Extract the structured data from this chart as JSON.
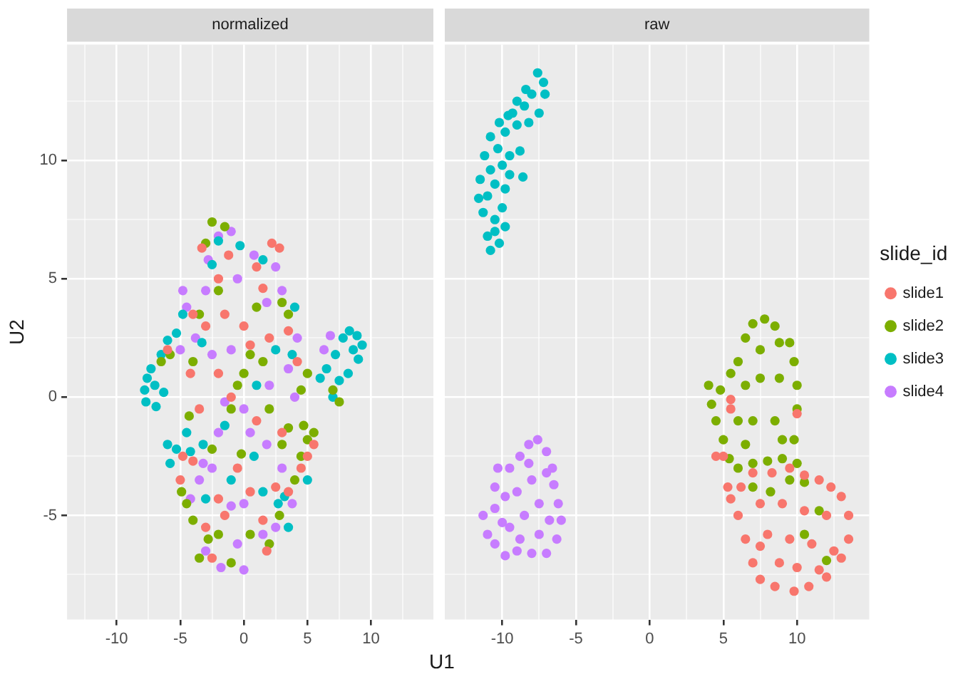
{
  "chart_data": [
    {
      "type": "scatter",
      "title": "normalized",
      "xlabel": "U1",
      "ylabel": "U2",
      "xlim": [
        -13.9,
        14.9
      ],
      "ylim": [
        -9.4,
        14.9
      ],
      "xticks": [
        {
          "value": -12.5,
          "label": null
        },
        -10,
        {
          "value": -7.5,
          "label": null
        },
        -5,
        {
          "value": -2.5,
          "label": null
        },
        0,
        {
          "value": 2.5,
          "label": null
        },
        5,
        {
          "value": 7.5,
          "label": null
        },
        10,
        {
          "value": 12.5,
          "label": null
        }
      ],
      "yticks": [
        {
          "value": -7.5,
          "label": null
        },
        -5,
        {
          "value": -2.5,
          "label": null
        },
        0,
        {
          "value": 2.5,
          "label": null
        },
        5,
        {
          "value": 7.5,
          "label": null
        },
        10,
        {
          "value": 12.5,
          "label": null
        }
      ],
      "grid": true,
      "marker": "circle",
      "series": [
        {
          "color": "#f8766d",
          "x": [
            -5.0,
            -4.0,
            -4.8,
            -3.0,
            -2.5,
            -1.5,
            0.5,
            1.5,
            2.5,
            3.5,
            4.5,
            5.0,
            3.0,
            1.0,
            -1.0,
            -2.0,
            -3.5,
            -4.2,
            -6.0,
            -3.0,
            -1.5,
            0.5,
            2.0,
            3.5,
            4.2,
            -2.0,
            -1.2,
            1.0,
            2.2,
            2.8,
            -3.3,
            0.0,
            -0.5,
            1.8,
            -2.0,
            5.5,
            -4.0,
            1.5
          ],
          "values": [
            -3.5,
            -2.7,
            -2.5,
            -5.5,
            -6.8,
            -5.0,
            -4.0,
            -5.2,
            -3.8,
            -4.0,
            -3.0,
            -2.5,
            -1.5,
            -1.0,
            0.0,
            1.0,
            -0.5,
            1.0,
            2.0,
            3.0,
            3.5,
            2.2,
            2.5,
            2.8,
            1.5,
            5.0,
            6.0,
            5.5,
            6.5,
            6.3,
            6.3,
            3.0,
            -3.0,
            -6.5,
            -4.3,
            -2.0,
            3.5,
            4.6
          ]
        },
        {
          "color": "#7cae00",
          "x": [
            -6.5,
            -5.8,
            -4.0,
            -4.9,
            -4.5,
            -4.0,
            -3.5,
            -2.8,
            -2.0,
            -1.0,
            0.5,
            2.0,
            2.8,
            4.0,
            4.5,
            5.0,
            4.7,
            5.5,
            3.5,
            3.0,
            0.0,
            0.5,
            -0.5,
            1.5,
            -1.0,
            -0.2,
            1.0,
            3.0,
            3.5,
            -2.5,
            -1.5,
            -3.0,
            -2.0,
            -3.5,
            7.0,
            7.5,
            5.0,
            2.0,
            -2.5,
            -4.3,
            4.5
          ],
          "values": [
            1.5,
            1.8,
            1.5,
            -4.0,
            -4.5,
            -5.2,
            -6.8,
            -6.0,
            -5.8,
            -7.0,
            -5.8,
            -6.2,
            -5.0,
            -3.5,
            -2.5,
            -1.8,
            -1.2,
            -1.5,
            -1.3,
            -2.0,
            1.0,
            1.8,
            0.5,
            1.5,
            -0.5,
            -2.4,
            3.8,
            4.0,
            3.5,
            7.4,
            7.2,
            6.5,
            4.5,
            3.5,
            0.3,
            -0.2,
            1.0,
            -0.5,
            -2.2,
            -0.8,
            0.3
          ]
        },
        {
          "color": "#00bfc4",
          "x": [
            -7.8,
            -7.6,
            -7.7,
            -7.3,
            -7.0,
            -6.9,
            -6.5,
            -6.3,
            -6.0,
            -5.3,
            -4.8,
            -6.0,
            -5.3,
            -5.8,
            -4.2,
            -3.2,
            -4.5,
            -3.0,
            -1.0,
            0.8,
            1.5,
            2.7,
            3.5,
            3.2,
            1.0,
            -0.3,
            -2.0,
            -2.5,
            1.5,
            4.0,
            2.5,
            -3.3,
            -1.5,
            6.0,
            6.5,
            7.0,
            7.2,
            7.8,
            8.3,
            8.9,
            9.3,
            9.0,
            8.2,
            7.5,
            8.6,
            5.0,
            3.8
          ],
          "values": [
            0.3,
            0.8,
            -0.2,
            1.2,
            0.5,
            -0.4,
            1.8,
            0.2,
            2.4,
            2.7,
            3.5,
            -2.0,
            -2.2,
            -2.8,
            -2.3,
            -2.0,
            -1.5,
            -4.3,
            -3.5,
            -2.5,
            -4.0,
            -4.5,
            -5.5,
            -4.2,
            0.5,
            6.4,
            6.6,
            5.6,
            5.8,
            3.8,
            2.0,
            2.3,
            -1.2,
            0.8,
            1.2,
            0.0,
            1.8,
            2.5,
            2.8,
            2.6,
            2.2,
            1.6,
            1.0,
            0.7,
            2.0,
            -3.5,
            1.8
          ]
        },
        {
          "color": "#c77cff",
          "x": [
            -5.0,
            -4.8,
            -4.5,
            -3.8,
            -3.0,
            -2.8,
            -2.0,
            -1.0,
            -0.5,
            0.8,
            2.5,
            3.0,
            1.8,
            4.2,
            3.5,
            2.0,
            0.0,
            -1.0,
            -2.5,
            -2.0,
            -3.2,
            -3.5,
            -2.5,
            -1.0,
            0.0,
            1.5,
            2.5,
            -0.5,
            -1.8,
            0.0,
            -3.0,
            3.8,
            3.0,
            1.8,
            -1.5,
            0.5,
            4.0,
            6.3,
            6.8,
            -4.2
          ],
          "values": [
            2.0,
            4.5,
            3.8,
            2.5,
            4.5,
            5.8,
            6.8,
            7.0,
            5.0,
            6.0,
            5.5,
            4.5,
            4.0,
            2.5,
            1.2,
            0.5,
            -0.5,
            2.0,
            1.8,
            -1.5,
            -2.8,
            -3.5,
            -3.0,
            -4.6,
            -4.5,
            -5.8,
            -5.5,
            -6.2,
            -7.2,
            -7.3,
            -6.5,
            -4.5,
            -3.0,
            -2.0,
            -0.2,
            -1.5,
            0.0,
            2.0,
            2.6,
            -4.3
          ]
        }
      ]
    },
    {
      "type": "scatter",
      "title": "raw",
      "legend_title": "slide_id",
      "legend": "right",
      "tick_labels": "x",
      "xlim": [
        -13.9,
        14.9
      ],
      "ylim": [
        -9.4,
        14.9
      ],
      "xticks": [
        {
          "value": -12.5,
          "label": null
        },
        -10,
        {
          "value": -7.5,
          "label": null
        },
        -5,
        {
          "value": -2.5,
          "label": null
        },
        0,
        {
          "value": 2.5,
          "label": null
        },
        5,
        {
          "value": 7.5,
          "label": null
        },
        10,
        {
          "value": 12.5,
          "label": null
        }
      ],
      "yticks": [
        {
          "value": -7.5,
          "label": null
        },
        -5,
        {
          "value": -2.5,
          "label": null
        },
        0,
        {
          "value": 2.5,
          "label": null
        },
        5,
        {
          "value": 7.5,
          "label": null
        },
        10,
        {
          "value": 12.5,
          "label": null
        }
      ],
      "grid": true,
      "marker": "circle",
      "series": [
        {
          "name": "slide1",
          "color": "#f8766d",
          "x": [
            5.0,
            5.3,
            5.5,
            6.0,
            6.5,
            7.0,
            7.5,
            8.5,
            9.8,
            10.8,
            12.0,
            13.0,
            13.5,
            13.5,
            13.0,
            12.3,
            11.5,
            10.5,
            9.5,
            8.3,
            7.0,
            6.2,
            7.5,
            9.0,
            10.5,
            12.0,
            8.0,
            9.5,
            11.0,
            12.5,
            8.8,
            10.0,
            11.5,
            7.5,
            5.5,
            5.5,
            10.0,
            4.5
          ],
          "values": [
            -2.5,
            -3.8,
            -4.3,
            -5.0,
            -6.0,
            -7.0,
            -7.7,
            -8.0,
            -8.2,
            -8.0,
            -7.6,
            -6.8,
            -6.0,
            -5.0,
            -4.2,
            -3.8,
            -3.5,
            -3.3,
            -3.0,
            -3.2,
            -3.2,
            -3.8,
            -4.5,
            -4.5,
            -4.8,
            -5.0,
            -5.8,
            -6.0,
            -6.2,
            -6.5,
            -7.0,
            -7.2,
            -7.3,
            -6.3,
            -0.5,
            -0.1,
            -0.7,
            -2.5
          ]
        },
        {
          "name": "slide2",
          "color": "#7cae00",
          "x": [
            7.8,
            7.0,
            6.5,
            6.0,
            5.5,
            4.8,
            4.0,
            4.2,
            4.5,
            5.0,
            5.4,
            6.0,
            7.0,
            8.0,
            9.0,
            10.0,
            9.8,
            10.0,
            10.0,
            9.8,
            9.5,
            8.8,
            8.5,
            7.5,
            6.5,
            7.5,
            8.8,
            6.0,
            7.0,
            8.5,
            6.5,
            9.5,
            8.2,
            7.0,
            10.5,
            11.5,
            10.5,
            12.0,
            9.0
          ],
          "values": [
            3.3,
            3.1,
            2.5,
            1.5,
            1.0,
            0.3,
            0.5,
            -0.3,
            -1.0,
            -1.8,
            -2.6,
            -3.0,
            -2.8,
            -2.7,
            -2.6,
            -2.8,
            -1.8,
            -0.5,
            0.5,
            1.5,
            2.3,
            2.3,
            3.0,
            2.0,
            0.5,
            0.8,
            0.8,
            -1.0,
            -1.0,
            -1.0,
            -2.0,
            -3.5,
            -4.0,
            -3.8,
            -3.6,
            -4.8,
            -5.8,
            -6.9,
            -1.8
          ]
        },
        {
          "name": "slide3",
          "color": "#00bfc4",
          "x": [
            -10.8,
            -11.0,
            -10.5,
            -10.2,
            -10.5,
            -11.3,
            -11.6,
            -11.0,
            -10.0,
            -9.8,
            -11.5,
            -10.8,
            -9.5,
            -8.6,
            -11.2,
            -10.3,
            -9.5,
            -8.8,
            -10.8,
            -9.8,
            -9.0,
            -8.2,
            -10.2,
            -9.3,
            -8.5,
            -7.5,
            -9.0,
            -8.0,
            -7.2,
            -7.6,
            -7.1,
            -8.4,
            -9.6,
            -10.5,
            -10.0,
            -9.8
          ],
          "values": [
            6.2,
            6.8,
            7.0,
            6.5,
            7.5,
            7.8,
            8.4,
            8.5,
            8.0,
            8.8,
            9.2,
            9.6,
            9.4,
            9.3,
            10.2,
            10.5,
            10.2,
            10.4,
            11.0,
            11.2,
            11.5,
            11.6,
            11.6,
            12.0,
            12.3,
            12.0,
            12.5,
            12.8,
            13.3,
            13.7,
            12.8,
            13.0,
            11.9,
            9.0,
            9.8,
            7.2
          ]
        },
        {
          "name": "slide4",
          "color": "#c77cff",
          "x": [
            -11.3,
            -11.0,
            -10.5,
            -9.8,
            -9.0,
            -8.0,
            -7.0,
            -6.3,
            -6.0,
            -6.2,
            -6.5,
            -6.6,
            -7.0,
            -7.6,
            -8.2,
            -8.8,
            -9.5,
            -10.3,
            -10.5,
            -9.8,
            -10.5,
            -9.0,
            -8.0,
            -7.5,
            -8.5,
            -9.5,
            -7.5,
            -8.8,
            -7.0,
            -8.2,
            -10.0,
            -6.8
          ],
          "values": [
            -5.0,
            -5.8,
            -6.2,
            -6.7,
            -6.5,
            -6.6,
            -6.6,
            -6.0,
            -5.2,
            -4.5,
            -3.7,
            -3.0,
            -2.3,
            -1.8,
            -2.0,
            -2.5,
            -3.0,
            -3.0,
            -3.8,
            -4.2,
            -4.7,
            -4.0,
            -3.5,
            -4.5,
            -5.0,
            -5.5,
            -5.8,
            -6.0,
            -3.2,
            -2.8,
            -5.3,
            -5.2
          ]
        }
      ]
    }
  ]
}
